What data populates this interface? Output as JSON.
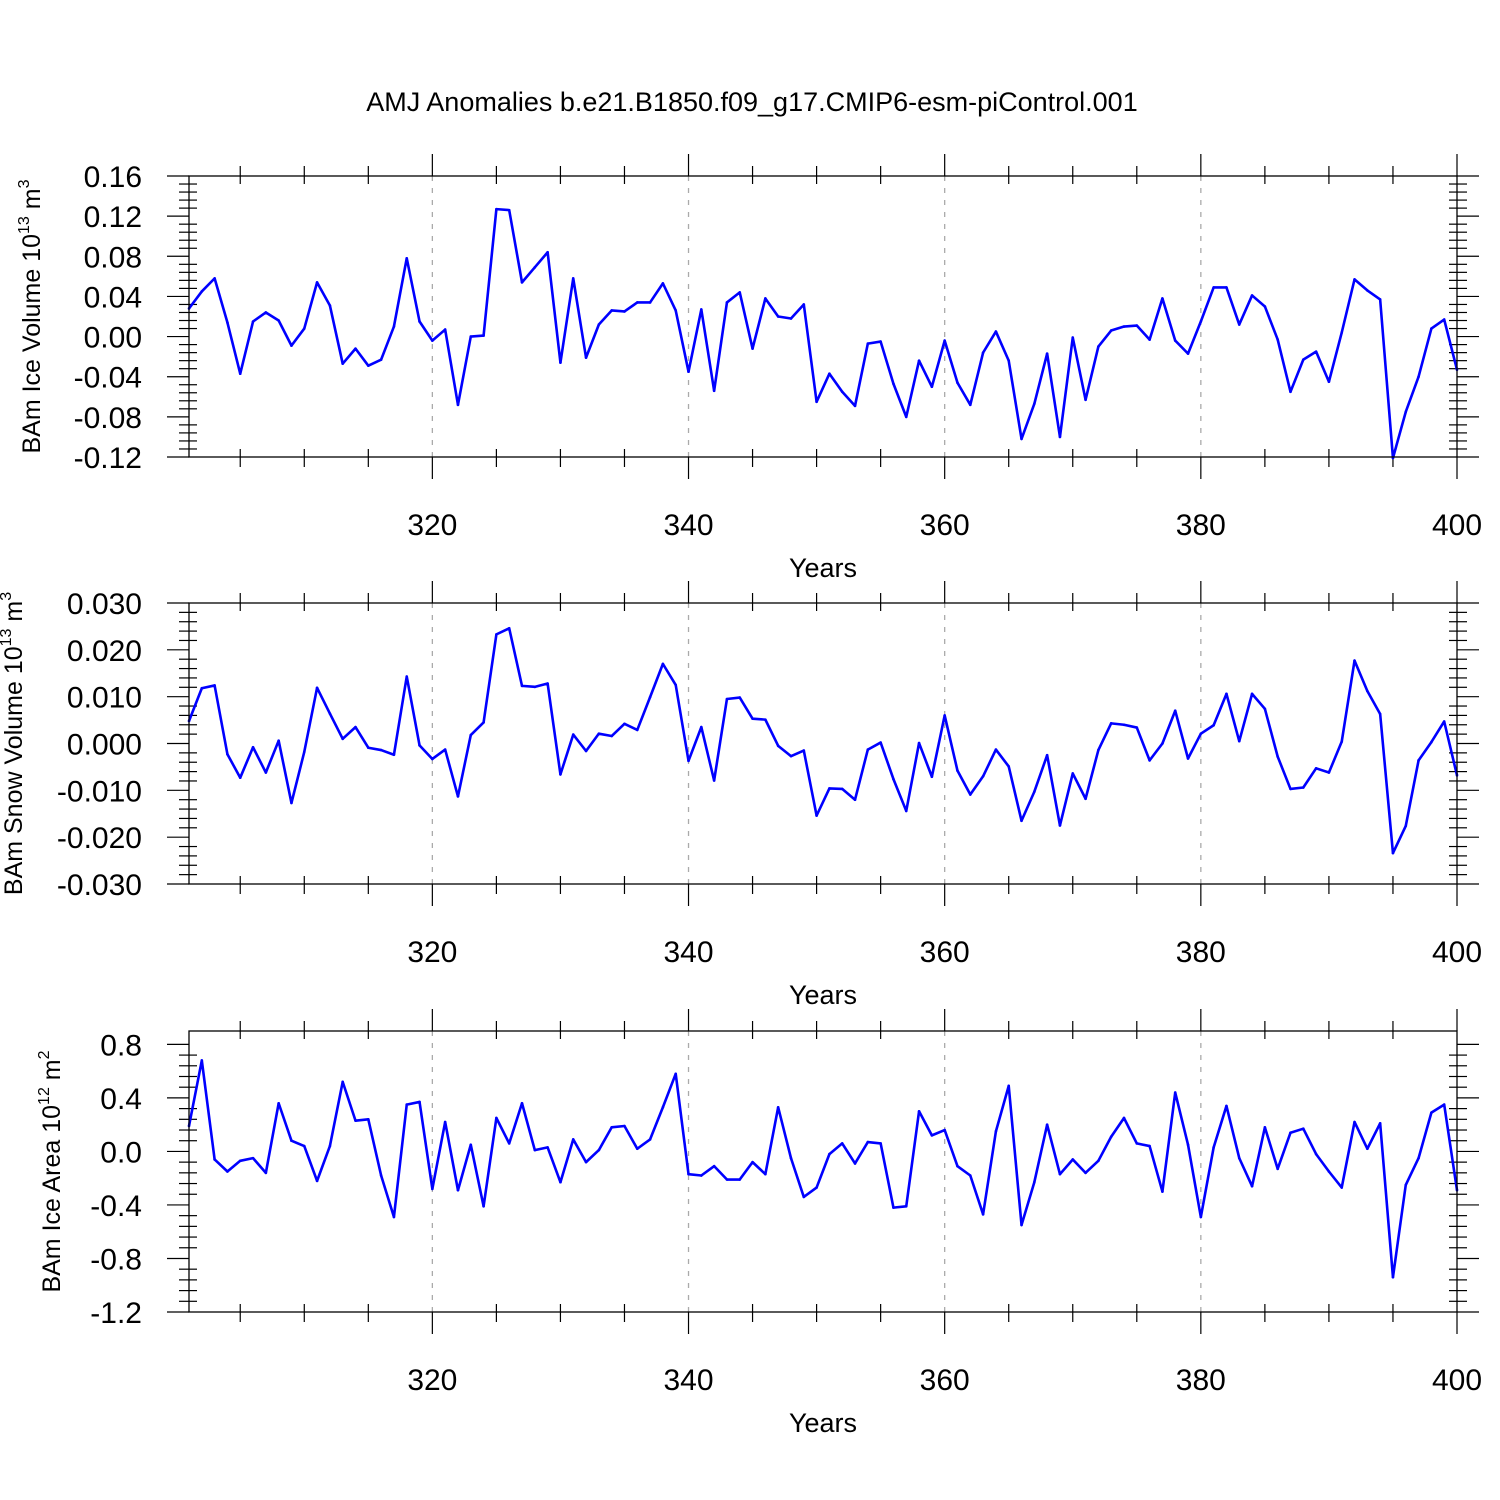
{
  "figure": {
    "title": "AMJ Anomalies b.e21.B1850.f09_g17.CMIP6-esm-piControl.001",
    "line_color": "#0000ff"
  },
  "chart_data": [
    {
      "type": "line",
      "panel": "ice-volume",
      "title": "",
      "xlabel": "Years",
      "ylabel": "BAm Ice Volume 10",
      "ylabel_exp": "13",
      "ylabel_unit": " m",
      "ylabel_unit_exp": "3",
      "xlim": [
        301,
        400
      ],
      "ylim": [
        -0.12,
        0.16
      ],
      "xticks": [
        320,
        340,
        360,
        380,
        400
      ],
      "xtick_labels": [
        "320",
        "340",
        "360",
        "380",
        "400"
      ],
      "yticks": [
        -0.12,
        -0.08,
        -0.04,
        0.0,
        0.04,
        0.08,
        0.12,
        0.16
      ],
      "ytick_labels": [
        "-0.12",
        "-0.08",
        "-0.04",
        "0.00",
        "0.04",
        "0.08",
        "0.12",
        "0.16"
      ],
      "grid": "dashed verticals at major x ticks",
      "series": [
        {
          "name": "BAm Ice Volume",
          "x_start": 301,
          "values": [
            0.028,
            0.045,
            0.058,
            0.014,
            -0.037,
            0.015,
            0.024,
            0.016,
            -0.009,
            0.008,
            0.054,
            0.031,
            -0.027,
            -0.012,
            -0.029,
            -0.023,
            0.01,
            0.078,
            0.015,
            -0.004,
            0.007,
            -0.068,
            0.0,
            0.001,
            0.127,
            0.126,
            0.054,
            0.069,
            0.084,
            -0.026,
            0.058,
            -0.021,
            0.012,
            0.026,
            0.025,
            0.034,
            0.034,
            0.053,
            0.026,
            -0.035,
            0.027,
            -0.054,
            0.034,
            0.044,
            -0.012,
            0.038,
            0.02,
            0.018,
            0.032,
            -0.065,
            -0.037,
            -0.055,
            -0.069,
            -0.007,
            -0.005,
            -0.047,
            -0.08,
            -0.024,
            -0.05,
            -0.004,
            -0.046,
            -0.068,
            -0.016,
            0.005,
            -0.024,
            -0.102,
            -0.067,
            -0.017,
            -0.1,
            -0.001,
            -0.063,
            -0.01,
            0.006,
            0.01,
            0.011,
            -0.003,
            0.038,
            -0.004,
            -0.017,
            0.015,
            0.049,
            0.049,
            0.012,
            0.041,
            0.03,
            -0.003,
            -0.055,
            -0.023,
            -0.015,
            -0.045,
            0.004,
            0.057,
            0.046,
            0.037,
            -0.121,
            -0.075,
            -0.04,
            0.008,
            0.017,
            -0.033
          ]
        }
      ]
    },
    {
      "type": "line",
      "panel": "snow-volume",
      "title": "",
      "xlabel": "Years",
      "ylabel": "BAm Snow Volume 10",
      "ylabel_exp": "13",
      "ylabel_unit": " m",
      "ylabel_unit_exp": "3",
      "xlim": [
        301,
        400
      ],
      "ylim": [
        -0.03,
        0.03
      ],
      "xticks": [
        320,
        340,
        360,
        380,
        400
      ],
      "xtick_labels": [
        "320",
        "340",
        "360",
        "380",
        "400"
      ],
      "yticks": [
        -0.03,
        -0.02,
        -0.01,
        0.0,
        0.01,
        0.02,
        0.03
      ],
      "ytick_labels": [
        "-0.030",
        "-0.020",
        "-0.010",
        "0.000",
        "0.010",
        "0.020",
        "0.030"
      ],
      "grid": "dashed verticals at major x ticks",
      "series": [
        {
          "name": "BAm Snow Volume",
          "x_start": 301,
          "values": [
            0.0048,
            0.0118,
            0.0124,
            -0.0023,
            -0.0073,
            -0.0008,
            -0.0062,
            0.0006,
            -0.0127,
            -0.0018,
            0.0119,
            0.0064,
            0.001,
            0.0035,
            -0.0009,
            -0.0014,
            -0.0024,
            0.0143,
            -0.0004,
            -0.0033,
            -0.0013,
            -0.0113,
            0.0018,
            0.0045,
            0.0233,
            0.0246,
            0.0123,
            0.0121,
            0.0128,
            -0.0066,
            0.0019,
            -0.0016,
            0.0021,
            0.0016,
            0.0042,
            0.0029,
            0.0099,
            0.017,
            0.0125,
            -0.0037,
            0.0035,
            -0.0079,
            0.0095,
            0.0098,
            0.0053,
            0.0051,
            -0.0005,
            -0.0027,
            -0.0015,
            -0.0154,
            -0.0096,
            -0.0097,
            -0.012,
            -0.0013,
            0.0002,
            -0.0076,
            -0.0144,
            0.0001,
            -0.0071,
            0.006,
            -0.0058,
            -0.0109,
            -0.007,
            -0.0013,
            -0.0049,
            -0.0165,
            -0.0103,
            -0.0025,
            -0.0175,
            -0.0064,
            -0.0118,
            -0.0014,
            0.0043,
            0.004,
            0.0034,
            -0.0036,
            0.0,
            0.007,
            -0.0032,
            0.0021,
            0.0039,
            0.0106,
            0.0005,
            0.0106,
            0.0074,
            -0.0028,
            -0.0097,
            -0.0094,
            -0.0053,
            -0.0062,
            0.0004,
            0.0177,
            0.0112,
            0.0063,
            -0.0234,
            -0.0176,
            -0.0036,
            0.0003,
            0.0047,
            -0.0068
          ]
        }
      ]
    },
    {
      "type": "line",
      "panel": "ice-area",
      "title": "",
      "xlabel": "Years",
      "ylabel": "BAm Ice Area 10",
      "ylabel_exp": "12",
      "ylabel_unit": " m",
      "ylabel_unit_exp": "2",
      "xlim": [
        301,
        400
      ],
      "ylim": [
        -1.2,
        0.9
      ],
      "xticks": [
        320,
        340,
        360,
        380,
        400
      ],
      "xtick_labels": [
        "320",
        "340",
        "360",
        "380",
        "400"
      ],
      "yticks": [
        -1.2,
        -0.8,
        -0.4,
        0.0,
        0.4,
        0.8
      ],
      "ytick_labels": [
        "-1.2",
        "-0.8",
        "-0.4",
        "0.0",
        "0.4",
        "0.8"
      ],
      "grid": "dashed verticals at major x ticks",
      "series": [
        {
          "name": "BAm Ice Area",
          "x_start": 301,
          "values": [
            0.19,
            0.68,
            -0.06,
            -0.15,
            -0.07,
            -0.05,
            -0.16,
            0.36,
            0.08,
            0.04,
            -0.22,
            0.04,
            0.52,
            0.23,
            0.24,
            -0.18,
            -0.49,
            0.35,
            0.37,
            -0.28,
            0.22,
            -0.29,
            0.05,
            -0.41,
            0.25,
            0.06,
            0.36,
            0.01,
            0.03,
            -0.23,
            0.09,
            -0.08,
            0.01,
            0.18,
            0.19,
            0.02,
            0.09,
            0.33,
            0.58,
            -0.17,
            -0.18,
            -0.11,
            -0.21,
            -0.21,
            -0.08,
            -0.17,
            0.33,
            -0.05,
            -0.34,
            -0.27,
            -0.02,
            0.06,
            -0.09,
            0.07,
            0.06,
            -0.42,
            -0.41,
            0.3,
            0.12,
            0.16,
            -0.11,
            -0.18,
            -0.47,
            0.15,
            0.49,
            -0.55,
            -0.23,
            0.2,
            -0.17,
            -0.06,
            -0.16,
            -0.07,
            0.11,
            0.25,
            0.06,
            0.04,
            -0.3,
            0.44,
            0.05,
            -0.49,
            0.03,
            0.34,
            -0.05,
            -0.26,
            0.18,
            -0.13,
            0.14,
            0.17,
            -0.02,
            -0.15,
            -0.27,
            0.22,
            0.02,
            0.21,
            -0.94,
            -0.25,
            -0.05,
            0.29,
            0.35,
            -0.29
          ]
        }
      ]
    }
  ]
}
